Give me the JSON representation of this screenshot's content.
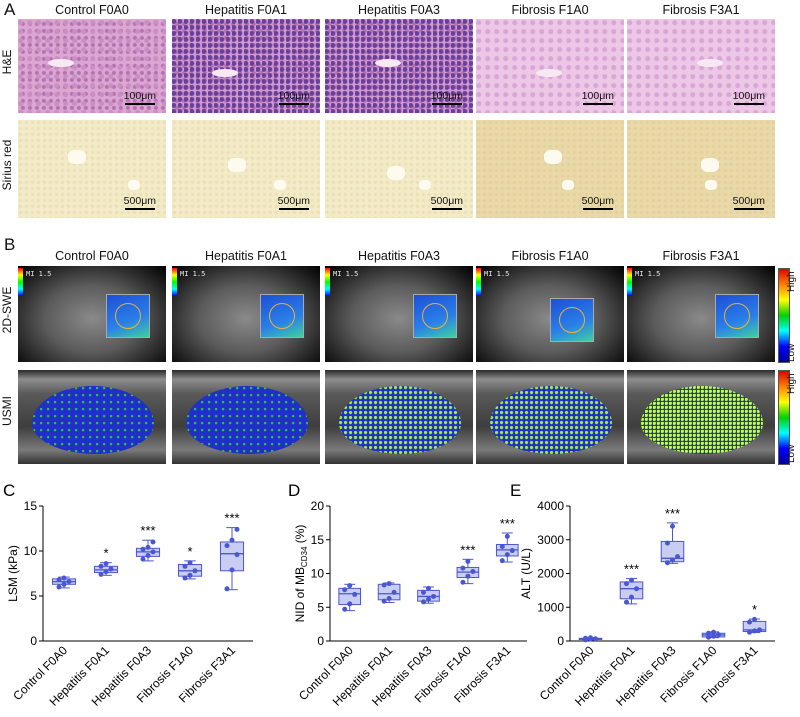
{
  "panels": {
    "A": {
      "letter": "A",
      "columns": [
        "Control F0A0",
        "Hepatitis F0A1",
        "Hepatitis F0A3",
        "Fibrosis F1A0",
        "Fibrosis F3A1"
      ],
      "rows": [
        "H&E",
        "Sirius red"
      ],
      "scale_he": "100μm",
      "scale_sirius": "500μm"
    },
    "B": {
      "letter": "B",
      "columns": [
        "Control F0A0",
        "Hepatitis F0A1",
        "Hepatitis F0A3",
        "Fibrosis F1A0",
        "Fibrosis F3A1"
      ],
      "rows": [
        "2D-SWE",
        "USMI"
      ],
      "colorbar_high": "High",
      "colorbar_low": "Low"
    }
  },
  "chart_data": [
    {
      "type": "box",
      "panel": "C",
      "categories": [
        "Control F0A0",
        "Hepatitis F0A1",
        "Hepatitis F0A3",
        "Fibrosis F1A0",
        "Fibrosis F3A1"
      ],
      "ylabel": "LSM (kPa)",
      "ylim": [
        0,
        15
      ],
      "yticks": [
        0,
        5,
        10,
        15
      ],
      "boxes": [
        {
          "min": 5.9,
          "q1": 6.3,
          "median": 6.6,
          "q3": 6.9,
          "max": 7.1,
          "points": [
            6.0,
            6.3,
            6.6,
            6.8,
            7.0
          ]
        },
        {
          "min": 7.3,
          "q1": 7.6,
          "median": 7.9,
          "q3": 8.3,
          "max": 8.7,
          "points": [
            7.4,
            7.7,
            8.0,
            8.3,
            8.6
          ]
        },
        {
          "min": 8.9,
          "q1": 9.4,
          "median": 9.9,
          "q3": 10.3,
          "max": 11.2,
          "points": [
            9.1,
            9.5,
            9.9,
            10.2,
            10.4,
            11.0
          ]
        },
        {
          "min": 6.9,
          "q1": 7.2,
          "median": 7.8,
          "q3": 8.5,
          "max": 8.9,
          "points": [
            7.0,
            7.3,
            7.8,
            8.3,
            8.7
          ]
        },
        {
          "min": 5.7,
          "q1": 7.8,
          "median": 9.7,
          "q3": 11.0,
          "max": 12.6,
          "points": [
            5.8,
            7.9,
            9.6,
            10.6,
            11.2,
            12.4
          ]
        }
      ],
      "significance": [
        "",
        "*",
        "***",
        "*",
        "***"
      ]
    },
    {
      "type": "box",
      "panel": "D",
      "categories": [
        "Control F0A0",
        "Hepatitis F0A1",
        "Hepatitis F0A3",
        "Fibrosis F1A0",
        "Fibrosis F3A1"
      ],
      "ylabel": "NID of MBCD34 (%)",
      "ylabel_main": "NID of MB",
      "ylabel_sub": "CD34",
      "ylabel_unit": "(%)",
      "ylim": [
        0,
        20
      ],
      "yticks": [
        0,
        5,
        10,
        15,
        20
      ],
      "boxes": [
        {
          "min": 4.5,
          "q1": 5.4,
          "median": 7.0,
          "q3": 7.8,
          "max": 8.4,
          "points": [
            4.7,
            5.5,
            6.9,
            7.6,
            8.2
          ]
        },
        {
          "min": 5.7,
          "q1": 6.1,
          "median": 7.0,
          "q3": 8.4,
          "max": 8.6,
          "points": [
            5.9,
            6.3,
            7.2,
            8.3,
            8.5
          ]
        },
        {
          "min": 5.6,
          "q1": 5.9,
          "median": 6.6,
          "q3": 7.5,
          "max": 8.0,
          "points": [
            5.8,
            6.2,
            6.6,
            7.2,
            7.8
          ]
        },
        {
          "min": 8.5,
          "q1": 9.4,
          "median": 10.2,
          "q3": 10.9,
          "max": 12.1,
          "points": [
            8.7,
            9.6,
            10.3,
            10.8,
            11.8
          ]
        },
        {
          "min": 11.7,
          "q1": 12.6,
          "median": 13.5,
          "q3": 14.3,
          "max": 16.0,
          "points": [
            11.9,
            12.8,
            13.4,
            14.0,
            15.5
          ]
        }
      ],
      "significance": [
        "",
        "",
        "",
        "***",
        "***"
      ]
    },
    {
      "type": "box",
      "panel": "E",
      "categories": [
        "Control F0A0",
        "Hepatitis F0A1",
        "Hepatitis F0A3",
        "Fibrosis F1A0",
        "Fibrosis F3A1"
      ],
      "ylabel": "ALT (U/L)",
      "ylim": [
        0,
        4000
      ],
      "yticks": [
        0,
        1000,
        2000,
        3000,
        4000
      ],
      "boxes": [
        {
          "min": 30,
          "q1": 45,
          "median": 60,
          "q3": 80,
          "max": 100,
          "points": [
            35,
            55,
            65,
            80,
            95
          ]
        },
        {
          "min": 1100,
          "q1": 1250,
          "median": 1550,
          "q3": 1750,
          "max": 1850,
          "points": [
            1150,
            1300,
            1550,
            1700,
            1800
          ]
        },
        {
          "min": 2300,
          "q1": 2350,
          "median": 2450,
          "q3": 2950,
          "max": 3500,
          "points": [
            2320,
            2400,
            2500,
            2900,
            3400
          ]
        },
        {
          "min": 100,
          "q1": 120,
          "median": 180,
          "q3": 230,
          "max": 270,
          "points": [
            110,
            140,
            190,
            230,
            260
          ]
        },
        {
          "min": 250,
          "q1": 280,
          "median": 330,
          "q3": 580,
          "max": 650,
          "points": [
            260,
            300,
            330,
            560,
            640
          ]
        }
      ],
      "significance": [
        "",
        "***",
        "***",
        "",
        "*"
      ]
    }
  ],
  "chart_letters": [
    "C",
    "D",
    "E"
  ]
}
